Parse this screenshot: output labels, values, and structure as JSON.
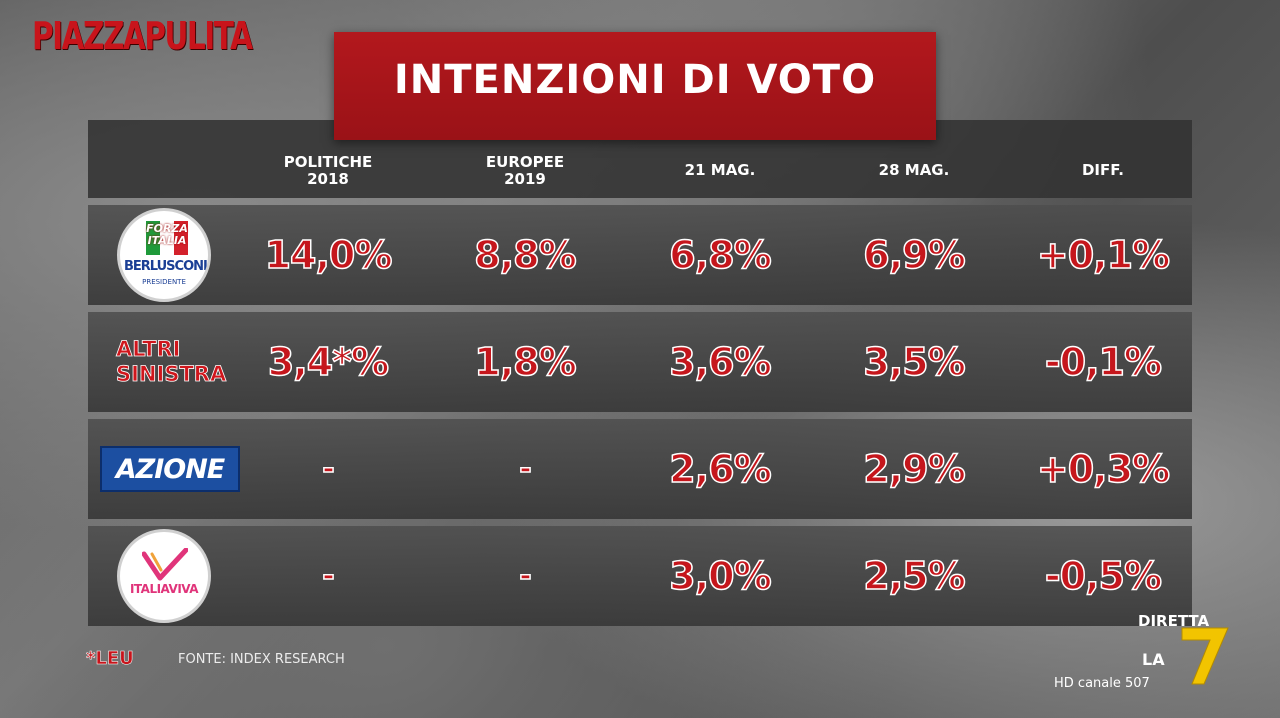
{
  "brand": "PIAZZAPULITA",
  "chart_data": {
    "type": "table",
    "title": "INTENZIONI DI VOTO",
    "columns": [
      {
        "line1": "POLITICHE",
        "line2": "2018"
      },
      {
        "line1": "EUROPEE",
        "line2": "2019"
      },
      {
        "line1": "21 MAG.",
        "line2": ""
      },
      {
        "line1": "28 MAG.",
        "line2": ""
      },
      {
        "line1": "DIFF.",
        "line2": ""
      }
    ],
    "rows": [
      {
        "party": "Forza Italia",
        "logo": "forza-italia-logo",
        "logo_text": {
          "top": "FORZA ITALIA",
          "main": "BERLUSCONI",
          "sub": "PRESIDENTE"
        },
        "values": [
          "14,0%",
          "8,8%",
          "6,8%",
          "6,9%",
          "+0,1%"
        ]
      },
      {
        "party": "Altri Sinistra",
        "logo": "altri-sinistra-label",
        "logo_text": {
          "line1": "ALTRI",
          "line2": "SINISTRA"
        },
        "values": [
          "3,4*%",
          "1,8%",
          "3,6%",
          "3,5%",
          "-0,1%"
        ]
      },
      {
        "party": "Azione",
        "logo": "azione-logo",
        "logo_text": {
          "main": "AZIONE"
        },
        "values": [
          "-",
          "-",
          "2,6%",
          "2,9%",
          "+0,3%"
        ]
      },
      {
        "party": "Italia Viva",
        "logo": "italia-viva-logo",
        "logo_text": {
          "main": "ITALIAVIVA"
        },
        "values": [
          "-",
          "-",
          "3,0%",
          "2,5%",
          "-0,5%"
        ]
      }
    ],
    "footnote": "*LEU",
    "source": "FONTE: INDEX RESEARCH"
  },
  "broadcaster": {
    "label": "DIRETTA",
    "la": "LA",
    "channel": "HD canale 507"
  },
  "colors": {
    "accent": "#c8141b",
    "title_bg": "#a8151a",
    "azione": "#1c4fa1",
    "italia_viva": "#e0347a"
  }
}
